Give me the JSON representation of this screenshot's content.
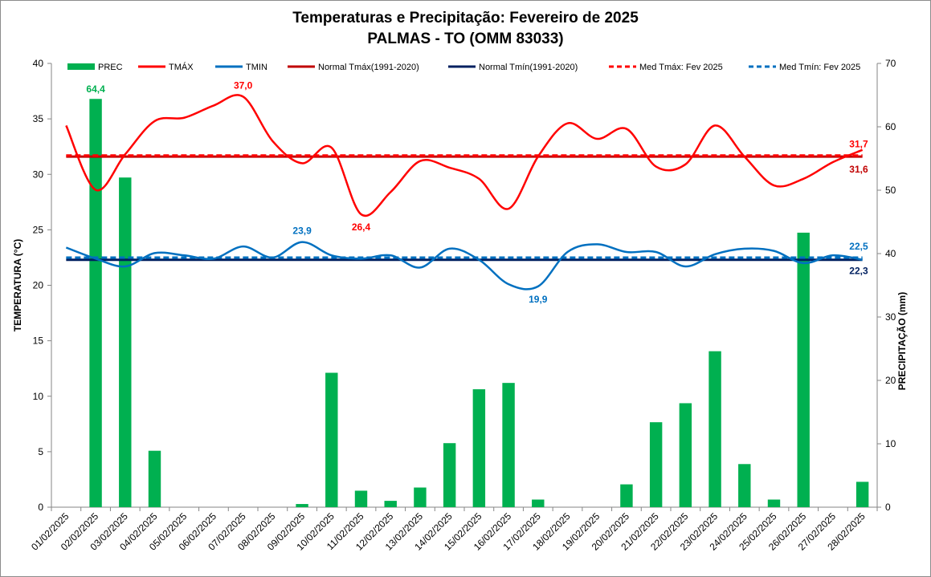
{
  "chart_data": {
    "type": "bar+line",
    "title": "Temperaturas  e Precipitação: Fevereiro de 2025",
    "subtitle": "PALMAS - TO (OMM 83033)",
    "ylabel": "TEMPERATURA  (°C)",
    "y2label": "PRECIPITAÇÃO (mm)",
    "ylim": [
      0,
      40
    ],
    "y2lim": [
      0,
      70
    ],
    "yticks": [
      "0",
      "5",
      "10",
      "15",
      "20",
      "25",
      "30",
      "35",
      "40"
    ],
    "y2ticks": [
      "0",
      "10",
      "20",
      "30",
      "40",
      "50",
      "60",
      "70"
    ],
    "categories": [
      "01/02/2025",
      "02/02/2025",
      "03/02/2025",
      "04/02/2025",
      "05/02/2025",
      "06/02/2025",
      "07/02/2025",
      "08/02/2025",
      "09/02/2025",
      "10/02/2025",
      "11/02/2025",
      "12/02/2025",
      "13/02/2025",
      "14/02/2025",
      "15/02/2025",
      "16/02/2025",
      "17/02/2025",
      "18/02/2025",
      "19/02/2025",
      "20/02/2025",
      "21/02/2025",
      "22/02/2025",
      "23/02/2025",
      "24/02/2025",
      "25/02/2025",
      "26/02/2025",
      "27/02/2025",
      "28/02/2025"
    ],
    "series": [
      {
        "name": "PREC",
        "type": "bar",
        "axis": "right",
        "color": "#00b050",
        "values": [
          0,
          64.4,
          52.0,
          8.9,
          0,
          0,
          0,
          0,
          0.5,
          21.2,
          2.6,
          1.0,
          3.1,
          10.1,
          18.6,
          19.6,
          1.2,
          0,
          0,
          3.6,
          13.4,
          16.4,
          24.6,
          6.8,
          1.2,
          43.3,
          0,
          4.0
        ]
      },
      {
        "name": "TMÁX",
        "type": "line",
        "axis": "left",
        "color": "#ff0000",
        "values": [
          34.4,
          28.6,
          31.8,
          34.8,
          35.1,
          36.2,
          37.0,
          33.0,
          31.0,
          32.4,
          26.4,
          28.4,
          31.2,
          30.6,
          29.6,
          26.9,
          31.6,
          34.6,
          33.2,
          34.1,
          30.7,
          30.9,
          34.4,
          31.6,
          29.0,
          29.6,
          31.1,
          32.2
        ]
      },
      {
        "name": "TMIN",
        "type": "line",
        "axis": "left",
        "color": "#0070c0",
        "values": [
          23.4,
          22.4,
          21.7,
          22.9,
          22.7,
          22.4,
          23.5,
          22.5,
          23.9,
          22.7,
          22.4,
          22.7,
          21.6,
          23.3,
          22.3,
          20.1,
          19.9,
          23.0,
          23.7,
          23.0,
          23.0,
          21.7,
          22.8,
          23.3,
          23.1,
          22.0,
          22.7,
          22.3
        ]
      },
      {
        "name": "Normal Tmáx(1991-2020)",
        "type": "hline",
        "axis": "left",
        "color": "#c00000",
        "value": 31.6
      },
      {
        "name": "Normal Tmín(1991-2020)",
        "type": "hline",
        "axis": "left",
        "color": "#002060",
        "value": 22.3
      },
      {
        "name": "Med Tmáx: Fev 2025",
        "type": "hline-dashed",
        "axis": "left",
        "color": "#ff0000",
        "value": 31.7
      },
      {
        "name": "Med Tmín: Fev 2025",
        "type": "hline-dashed",
        "axis": "left",
        "color": "#0070c0",
        "value": 22.5
      }
    ],
    "annotations": [
      {
        "text": "64,4",
        "color": "#00b050",
        "series": "PREC",
        "index": 1
      },
      {
        "text": "37,0",
        "color": "#ff0000",
        "series": "TMÁX",
        "index": 6
      },
      {
        "text": "26,4",
        "color": "#ff0000",
        "series": "TMÁX",
        "index": 10
      },
      {
        "text": "23,9",
        "color": "#0070c0",
        "series": "TMIN",
        "index": 8
      },
      {
        "text": "19,9",
        "color": "#0070c0",
        "series": "TMIN",
        "index": 16
      },
      {
        "text": "31,7",
        "color": "#ff0000",
        "series": "Med Tmáx: Fev 2025"
      },
      {
        "text": "31,6",
        "color": "#c00000",
        "series": "Normal Tmáx(1991-2020)"
      },
      {
        "text": "22,5",
        "color": "#0070c0",
        "series": "Med Tmín: Fev 2025"
      },
      {
        "text": "22,3",
        "color": "#002060",
        "series": "Normal Tmín(1991-2020)"
      }
    ],
    "legend": "top"
  }
}
